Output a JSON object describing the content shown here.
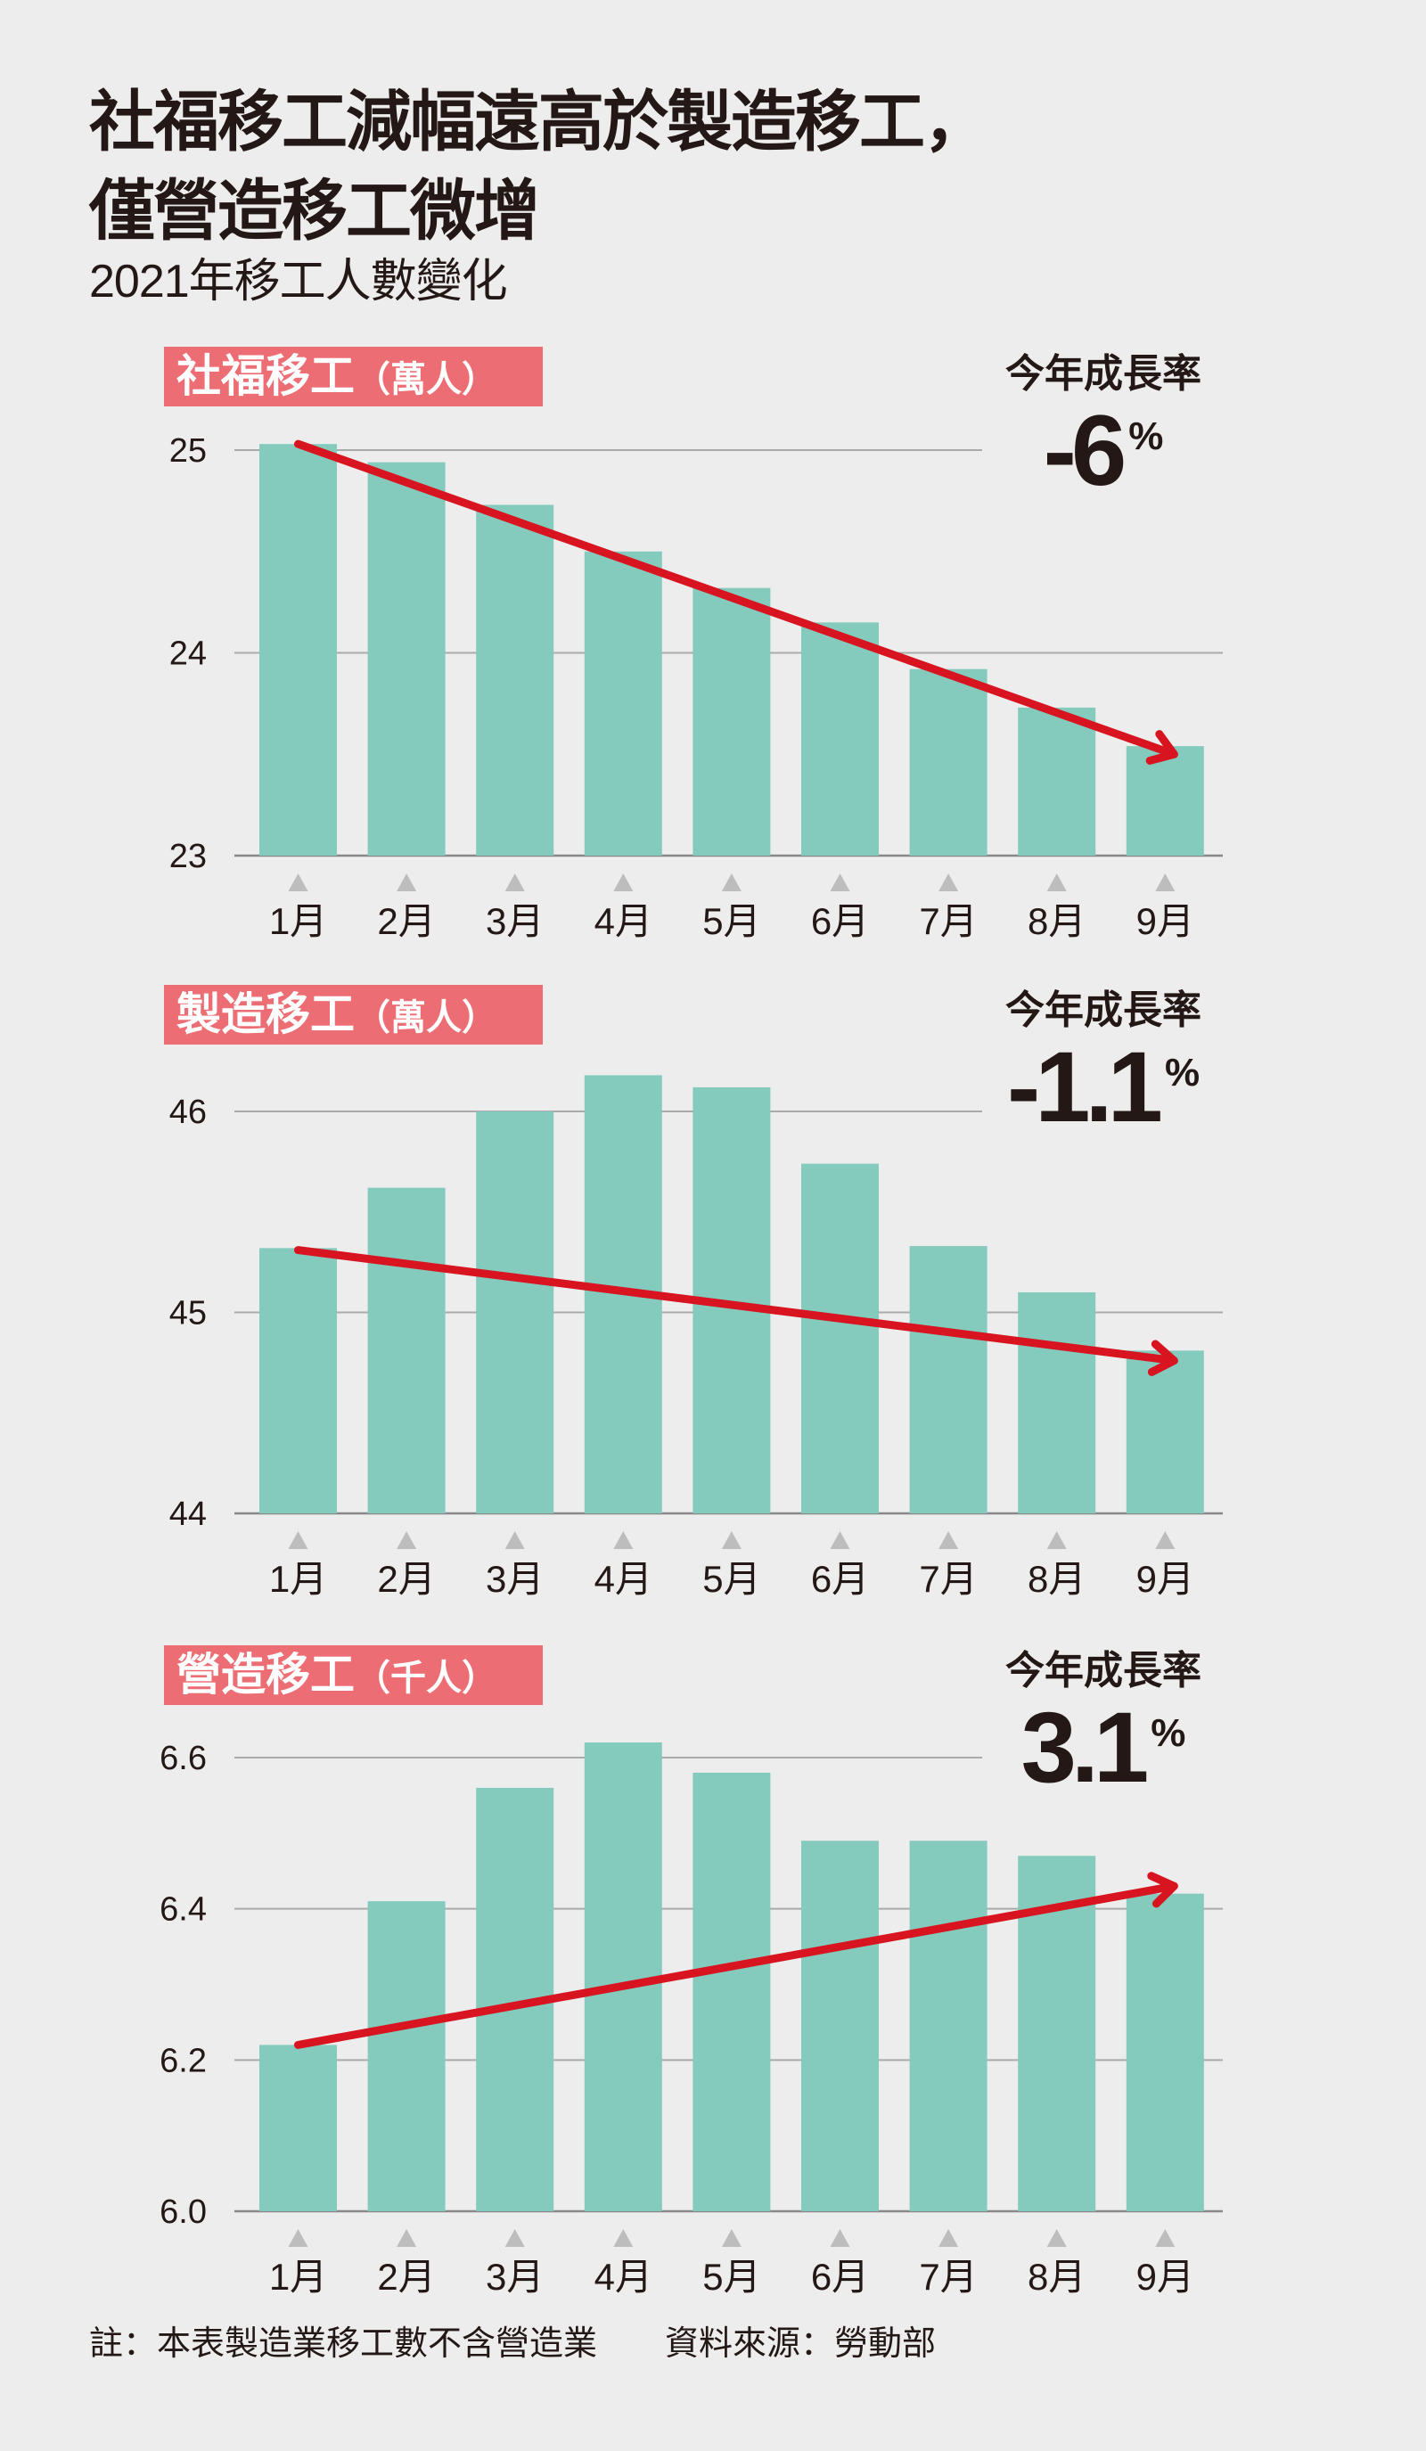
{
  "header": {
    "title_line1": "社福移工減幅遠高於製造移工，",
    "title_line2": "僅營造移工微增",
    "subtitle": "2021年移工人數變化"
  },
  "colors": {
    "bar": "#84cabd",
    "label_bg": "#ec6e74",
    "arrow": "#d7141f",
    "grid": "#aaaaaa",
    "background": "#ededed"
  },
  "chart_data": [
    {
      "type": "bar",
      "title": "社福移工",
      "unit": "（萬人）",
      "growth_label": "今年成長率",
      "growth_value": "-6",
      "growth_unit": "%",
      "categories": [
        "1月",
        "2月",
        "3月",
        "4月",
        "5月",
        "6月",
        "7月",
        "8月",
        "9月"
      ],
      "values": [
        25.03,
        24.94,
        24.73,
        24.5,
        24.32,
        24.15,
        23.92,
        23.73,
        23.54
      ],
      "ylim": [
        23,
        25
      ],
      "yticks": [
        "23",
        "24",
        "25"
      ],
      "trend": {
        "from": 25.03,
        "to": 23.5
      },
      "grid": true
    },
    {
      "type": "bar",
      "title": "製造移工",
      "unit": "（萬人）",
      "growth_label": "今年成長率",
      "growth_value": "-1.1",
      "growth_unit": "%",
      "categories": [
        "1月",
        "2月",
        "3月",
        "4月",
        "5月",
        "6月",
        "7月",
        "8月",
        "9月"
      ],
      "values": [
        45.32,
        45.62,
        46.0,
        46.18,
        46.12,
        45.74,
        45.33,
        45.1,
        44.81
      ],
      "ylim": [
        44,
        46
      ],
      "yticks": [
        "44",
        "45",
        "46"
      ],
      "trend": {
        "from": 45.31,
        "to": 44.76
      },
      "grid": true
    },
    {
      "type": "bar",
      "title": "營造移工",
      "unit": "（千人）",
      "growth_label": "今年成長率",
      "growth_value": "3.1",
      "growth_unit": "%",
      "categories": [
        "1月",
        "2月",
        "3月",
        "4月",
        "5月",
        "6月",
        "7月",
        "8月",
        "9月"
      ],
      "values": [
        6.22,
        6.41,
        6.56,
        6.62,
        6.58,
        6.49,
        6.49,
        6.47,
        6.42
      ],
      "ylim": [
        6.0,
        6.6
      ],
      "yticks": [
        "6.0",
        "6.2",
        "6.4",
        "6.6"
      ],
      "trend": {
        "from": 6.22,
        "to": 6.43
      },
      "grid": true
    }
  ],
  "footer": {
    "note": "註：本表製造業移工數不含營造業　　資料來源：勞動部"
  }
}
